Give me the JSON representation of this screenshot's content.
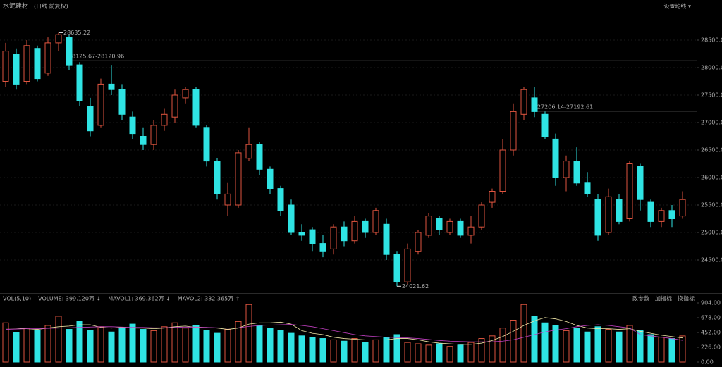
{
  "header": {
    "title": "水泥建材",
    "subtitle": "(日线 前复权)",
    "menu": "设置均线 ▾"
  },
  "chart_data": [
    {
      "type": "candlestick",
      "open": [
        27750,
        28250,
        27750,
        28350,
        27900,
        28450,
        28550,
        28050,
        27300,
        26950,
        27700,
        27600,
        27100,
        26750,
        26600,
        26950,
        27100,
        27450,
        27600,
        26900,
        26300,
        25500,
        25500,
        26350,
        26600,
        26150,
        25800,
        25500,
        25000,
        25050,
        24800,
        24700,
        25100,
        24850,
        25200,
        25000,
        25150,
        24600,
        24100,
        24650,
        24950,
        25250,
        25000,
        25200,
        24950,
        25100,
        25550,
        25750,
        26500,
        27150,
        27450,
        27150,
        26700,
        26000,
        26300,
        25900,
        25600,
        25000,
        25600,
        25250,
        26200,
        25550,
        25200,
        25400,
        25300
      ],
      "high": [
        28450,
        28350,
        28500,
        28400,
        28550,
        28635.22,
        28600,
        28100,
        27450,
        27800,
        28050,
        27700,
        27200,
        26900,
        27050,
        27250,
        27600,
        27650,
        27650,
        26950,
        26350,
        25900,
        26500,
        26900,
        26650,
        26200,
        25850,
        25600,
        25150,
        25100,
        24950,
        25150,
        25200,
        25300,
        25250,
        25450,
        25250,
        24650,
        24800,
        25050,
        25350,
        25300,
        25250,
        25250,
        25300,
        25550,
        25800,
        26700,
        27350,
        27650,
        27650,
        27200,
        26800,
        26400,
        26550,
        26100,
        25700,
        25800,
        25700,
        26300,
        26250,
        25600,
        25450,
        25500,
        25750
      ],
      "low": [
        27650,
        27600,
        27700,
        27750,
        27850,
        28300,
        27950,
        27300,
        26750,
        26900,
        27500,
        27050,
        26700,
        26500,
        26500,
        26850,
        27000,
        27350,
        26900,
        26200,
        25600,
        25300,
        25450,
        26300,
        26050,
        25700,
        25300,
        24950,
        24850,
        24650,
        24550,
        24600,
        24750,
        24800,
        24900,
        24950,
        24500,
        24021.62,
        24050,
        24600,
        24900,
        24950,
        24950,
        24900,
        24800,
        25050,
        25450,
        25700,
        26400,
        27050,
        27100,
        26700,
        25850,
        25750,
        25850,
        25650,
        24850,
        24950,
        25150,
        25200,
        25400,
        25100,
        25100,
        25100,
        25250
      ],
      "close": [
        28300,
        27700,
        28400,
        27800,
        28450,
        28600,
        28050,
        27400,
        26850,
        27700,
        27600,
        27150,
        26800,
        26600,
        26950,
        27150,
        27500,
        27600,
        26950,
        26300,
        25700,
        25700,
        26450,
        26600,
        26150,
        25800,
        25400,
        25000,
        24950,
        24800,
        24650,
        25100,
        24850,
        25200,
        25000,
        25400,
        24600,
        24100,
        24700,
        25000,
        25300,
        25050,
        25200,
        24950,
        25100,
        25500,
        25750,
        26500,
        27200,
        27600,
        27200,
        26750,
        26000,
        26300,
        25900,
        25700,
        24950,
        25650,
        25200,
        26250,
        25600,
        25200,
        25400,
        25250,
        25600
      ],
      "up_color": "#e0553f",
      "down_color": "#2fe4e4",
      "ylim": [
        24000,
        29000
      ],
      "yticks": [
        {
          "value": 24500,
          "label": "24500.00"
        },
        {
          "value": 25000,
          "label": "25000.00"
        },
        {
          "value": 25500,
          "label": "25500.00"
        },
        {
          "value": 26000,
          "label": "26000.00"
        },
        {
          "value": 26500,
          "label": "26500.00"
        },
        {
          "value": 27000,
          "label": "27000.00"
        },
        {
          "value": 27500,
          "label": "27500.00"
        },
        {
          "value": 28000,
          "label": "28000.00"
        },
        {
          "value": 28500,
          "label": "28500.00"
        }
      ],
      "grid": true,
      "annotations": [
        {
          "text": "28125.67-28120.96",
          "value": 28125.67
        },
        {
          "text": "27206.14-27192.61",
          "value": 27206.14
        }
      ]
    },
    {
      "type": "volume",
      "title": "VOL(5,10)",
      "volume_label": "VOLUME: 399.120万 ↓",
      "values": [
        600,
        450,
        520,
        480,
        560,
        700,
        500,
        620,
        480,
        540,
        460,
        520,
        580,
        500,
        480,
        540,
        600,
        520,
        560,
        480,
        440,
        500,
        620,
        880,
        560,
        520,
        480,
        440,
        400,
        380,
        360,
        340,
        320,
        360,
        300,
        340,
        380,
        420,
        300,
        280,
        260,
        280,
        240,
        260,
        300,
        360,
        400,
        520,
        640,
        880,
        700,
        600,
        560,
        480,
        520,
        460,
        540,
        500,
        460,
        560,
        480,
        420,
        380,
        360,
        399.12
      ],
      "series": [
        {
          "name": "MAVOL1: 369.362万 ↓",
          "color": "#f2e8a8",
          "values": [
            520,
            520,
            510,
            500,
            520,
            540,
            550,
            570,
            570,
            530,
            520,
            530,
            520,
            520,
            510,
            520,
            540,
            550,
            530,
            530,
            520,
            500,
            520,
            580,
            600,
            600,
            610,
            580,
            480,
            440,
            420,
            380,
            360,
            350,
            340,
            340,
            340,
            360,
            360,
            340,
            310,
            290,
            280,
            270,
            270,
            290,
            330,
            390,
            470,
            560,
            630,
            680,
            660,
            620,
            560,
            520,
            510,
            510,
            500,
            510,
            470,
            440,
            410,
            390,
            369.362
          ]
        },
        {
          "name": "MAVOL2: 332.365万 ↑",
          "color": "#c23fc2",
          "values": [
            500,
            505,
            510,
            510,
            515,
            520,
            525,
            530,
            535,
            540,
            540,
            535,
            530,
            530,
            525,
            525,
            530,
            535,
            535,
            530,
            525,
            520,
            525,
            545,
            560,
            565,
            570,
            575,
            560,
            540,
            510,
            480,
            450,
            420,
            400,
            390,
            380,
            375,
            370,
            360,
            345,
            330,
            320,
            315,
            310,
            310,
            310,
            320,
            340,
            380,
            420,
            460,
            490,
            510,
            540,
            560,
            570,
            560,
            540,
            520,
            420,
            400,
            380,
            360,
            332.365
          ]
        }
      ],
      "ylim": [
        0,
        904
      ],
      "yticks": [
        {
          "value": 0,
          "label": "0.00"
        },
        {
          "value": 226,
          "label": "226.00"
        },
        {
          "value": 452,
          "label": "452.00"
        },
        {
          "value": 678,
          "label": "678.00"
        },
        {
          "value": 904,
          "label": "904.00"
        }
      ],
      "buttons": [
        "改参数",
        "加指标",
        "换指标"
      ]
    }
  ]
}
